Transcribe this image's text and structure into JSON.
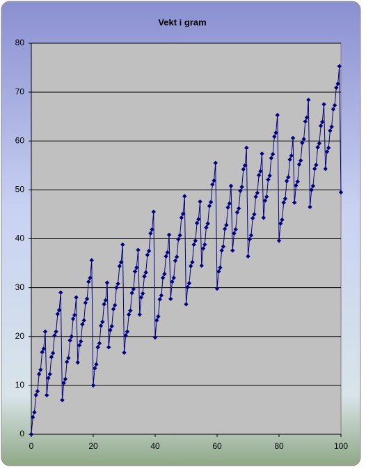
{
  "chart_data": {
    "type": "line",
    "title": "Vekt i gram",
    "color": "#000080",
    "x": [
      0,
      0.5,
      1,
      1.5,
      2,
      2.5,
      3,
      3.5,
      4,
      4.5,
      5,
      5.5,
      6,
      6.5,
      7,
      7.5,
      8,
      8.5,
      9,
      9.5,
      10,
      10.5,
      11,
      11.5,
      12,
      12.5,
      13,
      13.5,
      14,
      14.5,
      15,
      15.5,
      16,
      16.5,
      17,
      17.5,
      18,
      18.5,
      19,
      19.5,
      20,
      20.5,
      21,
      21.5,
      22,
      22.5,
      23,
      23.5,
      24,
      24.5,
      25,
      25.5,
      26,
      26.5,
      27,
      27.5,
      28,
      28.5,
      29,
      29.5,
      30,
      30.5,
      31,
      31.5,
      32,
      32.5,
      33,
      33.5,
      34,
      34.5,
      35,
      35.5,
      36,
      36.5,
      37,
      37.5,
      38,
      38.5,
      39,
      39.5,
      40,
      40.5,
      41,
      41.5,
      42,
      42.5,
      43,
      43.5,
      44,
      44.5,
      45,
      45.5,
      46,
      46.5,
      47,
      47.5,
      48,
      48.5,
      49,
      49.5,
      50,
      50.5,
      51,
      51.5,
      52,
      52.5,
      53,
      53.5,
      54,
      54.5,
      55,
      55.5,
      56,
      56.5,
      57,
      57.5,
      58,
      58.5,
      59,
      59.5,
      60,
      60.5,
      61,
      61.5,
      62,
      62.5,
      63,
      63.5,
      64,
      64.5,
      65,
      65.5,
      66,
      66.5,
      67,
      67.5,
      68,
      68.5,
      69,
      69.5,
      70,
      70.5,
      71,
      71.5,
      72,
      72.5,
      73,
      73.5,
      74,
      74.5,
      75,
      75.5,
      76,
      76.5,
      77,
      77.5,
      78,
      78.5,
      79,
      79.5,
      80,
      80.5,
      81,
      81.5,
      82,
      82.5,
      83,
      83.5,
      84,
      84.5,
      85,
      85.5,
      86,
      86.5,
      87,
      87.5,
      88,
      88.5,
      89,
      89.5,
      90,
      90.5,
      91,
      91.5,
      92,
      92.5,
      93,
      93.5,
      94,
      94.5,
      95,
      95.5,
      96,
      96.5,
      97,
      97.5,
      98,
      98.5,
      99,
      99.5,
      100
    ],
    "values": [
      0,
      3.5,
      4.5,
      8,
      8.8,
      12.3,
      13.2,
      16.8,
      17.5,
      21,
      8,
      11.5,
      12.3,
      15.8,
      16.6,
      20.2,
      21,
      24.6,
      25.4,
      29,
      7,
      10.5,
      11.3,
      14.8,
      15.6,
      19.2,
      20,
      23.6,
      24.4,
      28,
      14.7,
      18.2,
      19,
      22.5,
      23.3,
      26.9,
      27.7,
      31.2,
      32,
      35.6,
      10,
      13.5,
      14.3,
      17.8,
      18.6,
      22.2,
      23,
      26.6,
      27.4,
      31,
      17.8,
      21.3,
      22.1,
      25.6,
      26.4,
      30,
      30.8,
      34.4,
      35.2,
      38.8,
      16.7,
      20.2,
      21,
      24.5,
      25.3,
      28.9,
      29.7,
      33.3,
      34.1,
      37.7,
      24.5,
      28,
      28.8,
      32.3,
      33.1,
      36.7,
      37.5,
      41.1,
      41.9,
      45.5,
      19.8,
      23.3,
      24.1,
      27.6,
      28.4,
      32,
      32.8,
      36.4,
      37.2,
      40.8,
      27.7,
      31.2,
      32,
      35.5,
      36.3,
      39.9,
      40.7,
      44.3,
      45.1,
      48.7,
      26.6,
      30.1,
      30.9,
      34.4,
      35.2,
      38.8,
      39.6,
      43.2,
      44,
      47.6,
      34.5,
      38,
      38.8,
      42.3,
      43.1,
      46.7,
      47.5,
      51.1,
      51.9,
      55.5,
      29.8,
      33.3,
      34.1,
      37.6,
      38.4,
      42,
      42.8,
      46.4,
      47.2,
      50.8,
      37.6,
      41.1,
      41.9,
      45.4,
      46.2,
      49.8,
      50.6,
      54.2,
      55,
      58.6,
      36.4,
      39.9,
      40.7,
      44.2,
      45,
      48.6,
      49.4,
      53,
      53.8,
      57.4,
      44.3,
      47.8,
      48.6,
      52.1,
      52.9,
      56.5,
      57.3,
      60.9,
      61.7,
      65.3,
      39.6,
      43.1,
      43.9,
      47.4,
      48.2,
      51.8,
      52.6,
      56.2,
      57,
      60.6,
      47.4,
      50.9,
      51.7,
      55.2,
      56,
      59.6,
      60.4,
      64,
      64.8,
      68.4,
      46.5,
      50,
      50.8,
      54.3,
      55.1,
      58.7,
      59.5,
      63.1,
      63.9,
      67.5,
      54.3,
      57.8,
      58.6,
      62.1,
      62.9,
      66.5,
      67.3,
      70.9,
      71.7,
      75.3,
      49.5
    ],
    "xlim": [
      0,
      100
    ],
    "xticks": [
      0,
      20,
      40,
      60,
      80,
      100
    ],
    "ylim": [
      0,
      80
    ],
    "yticks": [
      0,
      10,
      20,
      30,
      40,
      50,
      60,
      70,
      80
    ],
    "grid": true
  }
}
